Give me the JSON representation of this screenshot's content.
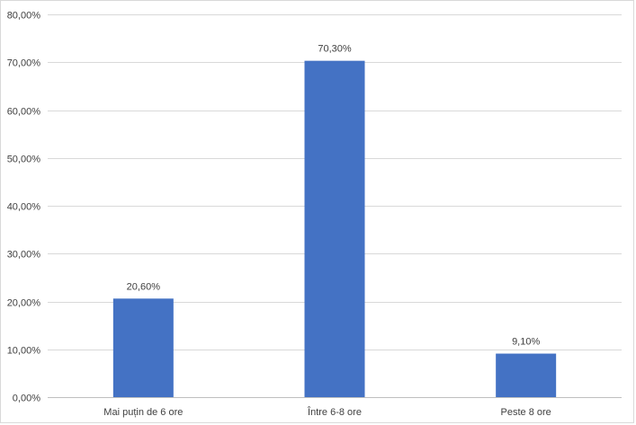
{
  "chart_data": {
    "type": "bar",
    "title": "",
    "xlabel": "",
    "ylabel": "",
    "categories": [
      "Mai puțin de 6 ore",
      "Între 6-8 ore",
      "Peste 8 ore"
    ],
    "values": [
      20.6,
      70.3,
      9.1
    ],
    "data_labels": [
      "20,60%",
      "70,30%",
      "9,10%"
    ],
    "ylim": [
      0,
      80
    ],
    "yticks": [
      0,
      10,
      20,
      30,
      40,
      50,
      60,
      70,
      80
    ],
    "ytick_labels": [
      "0,00%",
      "10,00%",
      "20,00%",
      "30,00%",
      "40,00%",
      "50,00%",
      "60,00%",
      "70,00%",
      "80,00%"
    ],
    "grid": true,
    "legend": "none",
    "bar_color": "#4472c4"
  }
}
